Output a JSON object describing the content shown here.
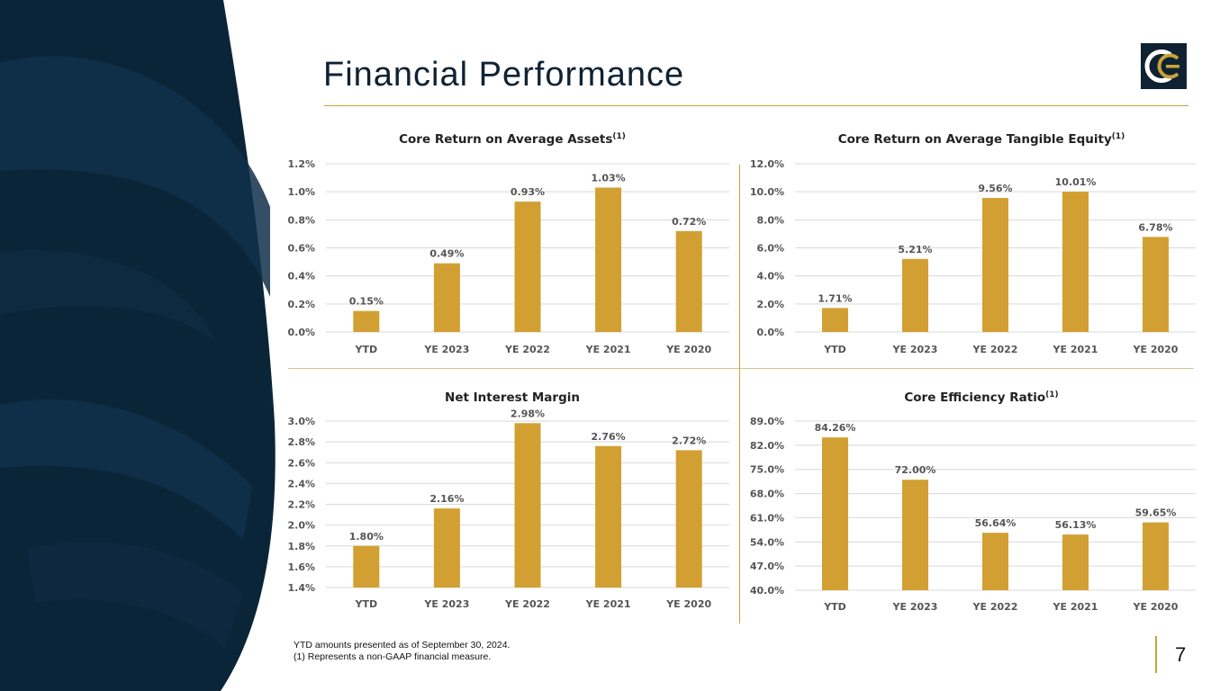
{
  "slide": {
    "title": "Financial Performance",
    "footnotes": [
      "YTD amounts presented as of September 30, 2024.",
      "(1) Represents a non-GAAP financial measure."
    ],
    "page_number": "7"
  },
  "colors": {
    "bar": "#d2a032",
    "navy": "#0f2233",
    "accent": "#c9a23a"
  },
  "chart_data": [
    {
      "type": "bar",
      "title": "Core Return on Average Assets",
      "title_sup": "(1)",
      "categories": [
        "YTD",
        "YE 2023",
        "YE 2022",
        "YE 2021",
        "YE 2020"
      ],
      "values": [
        0.15,
        0.49,
        0.93,
        1.03,
        0.72
      ],
      "value_labels": [
        "0.15%",
        "0.49%",
        "0.93%",
        "1.03%",
        "0.72%"
      ],
      "yticks": [
        "0.0%",
        "0.2%",
        "0.4%",
        "0.6%",
        "0.8%",
        "1.0%",
        "1.2%"
      ],
      "ylim": [
        0,
        1.2
      ]
    },
    {
      "type": "bar",
      "title": "Core Return on Average Tangible Equity",
      "title_sup": "(1)",
      "categories": [
        "YTD",
        "YE 2023",
        "YE 2022",
        "YE 2021",
        "YE 2020"
      ],
      "values": [
        1.71,
        5.21,
        9.56,
        10.01,
        6.78
      ],
      "value_labels": [
        "1.71%",
        "5.21%",
        "9.56%",
        "10.01%",
        "6.78%"
      ],
      "yticks": [
        "0.0%",
        "2.0%",
        "4.0%",
        "6.0%",
        "8.0%",
        "10.0%",
        "12.0%"
      ],
      "ylim": [
        0,
        12
      ]
    },
    {
      "type": "bar",
      "title": "Net Interest Margin",
      "title_sup": "",
      "categories": [
        "YTD",
        "YE 2023",
        "YE 2022",
        "YE 2021",
        "YE 2020"
      ],
      "values": [
        1.8,
        2.16,
        2.98,
        2.76,
        2.72
      ],
      "value_labels": [
        "1.80%",
        "2.16%",
        "2.98%",
        "2.76%",
        "2.72%"
      ],
      "yticks": [
        "1.4%",
        "1.6%",
        "1.8%",
        "2.0%",
        "2.2%",
        "2.4%",
        "2.6%",
        "2.8%",
        "3.0%"
      ],
      "ylim": [
        1.4,
        3.0
      ]
    },
    {
      "type": "bar",
      "title": "Core Efficiency Ratio",
      "title_sup": "(1)",
      "categories": [
        "YTD",
        "YE 2023",
        "YE 2022",
        "YE 2021",
        "YE 2020"
      ],
      "values": [
        84.26,
        72.0,
        56.64,
        56.13,
        59.65
      ],
      "value_labels": [
        "84.26%",
        "72.00%",
        "56.64%",
        "56.13%",
        "59.65%"
      ],
      "yticks": [
        "40.0%",
        "47.0%",
        "54.0%",
        "61.0%",
        "68.0%",
        "75.0%",
        "82.0%",
        "89.0%"
      ],
      "ylim": [
        40,
        89
      ]
    }
  ]
}
